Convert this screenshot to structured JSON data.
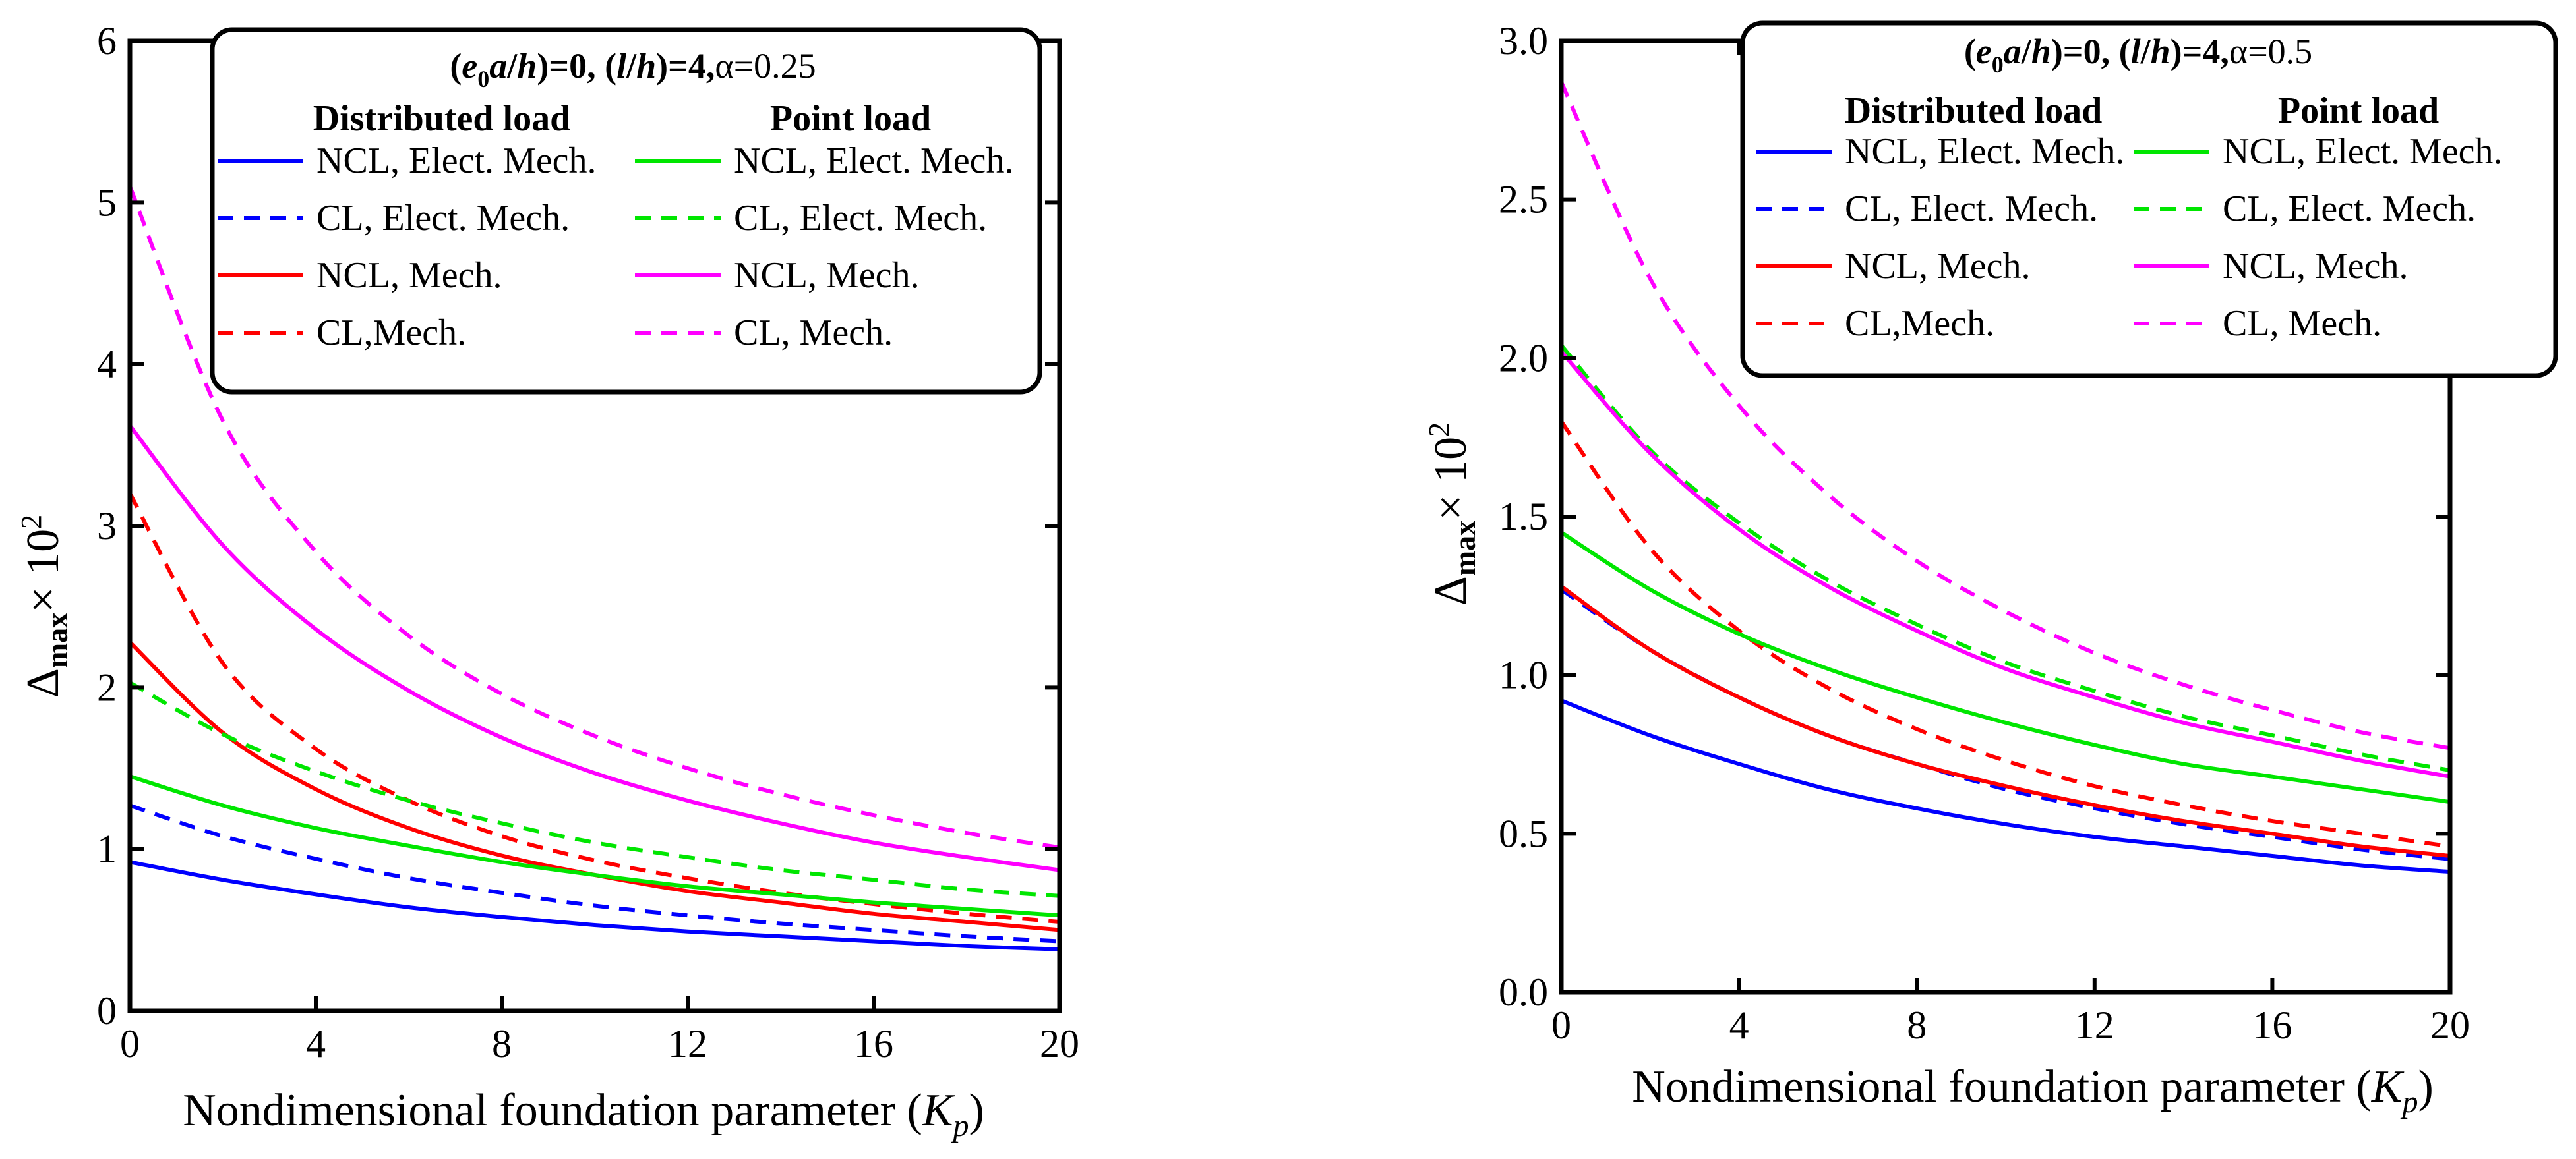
{
  "chart_data": [
    {
      "type": "line",
      "title": "(e0a/h)=0, (l/h)=4,α=0.25",
      "title_parts": {
        "e": "e",
        "sub0": "0",
        "a": "a",
        "h": "h",
        "mid": ")=0, (",
        "l": "l",
        "end": ")=4,",
        "alpha": "α=0.25"
      },
      "xlabel": "Nondimensional foundation parameter (Kp)",
      "xlabel_parts": {
        "text": "Nondimensional foundation parameter (",
        "K": "K",
        "sub": "p",
        "close": ")"
      },
      "ylabel": "Δmax × 10²",
      "ylabel_parts": {
        "delta": "Δ",
        "sub": "max",
        "times": "× 10",
        "sup": "2"
      },
      "xlim": [
        0,
        20
      ],
      "ylim": [
        0,
        6
      ],
      "xticks": [
        "0",
        "4",
        "8",
        "12",
        "16",
        "20"
      ],
      "yticks": [
        "0",
        "1",
        "2",
        "3",
        "4",
        "5",
        "6"
      ],
      "legend_headers": [
        "Distributed load",
        "Point load"
      ],
      "legend_position": "top-right",
      "x": [
        0,
        2,
        4,
        6,
        8,
        10,
        12,
        14,
        16,
        18,
        20
      ],
      "series": [
        {
          "name": "NCL, Elect. Mech.",
          "group": "Distributed load",
          "color": "#0000ff",
          "dash": "solid",
          "values": [
            0.92,
            0.81,
            0.72,
            0.64,
            0.58,
            0.53,
            0.49,
            0.46,
            0.43,
            0.4,
            0.38
          ]
        },
        {
          "name": "CL, Elect. Mech.",
          "group": "Distributed load",
          "color": "#0000ff",
          "dash": "dashed",
          "values": [
            1.27,
            1.08,
            0.94,
            0.82,
            0.73,
            0.65,
            0.59,
            0.54,
            0.5,
            0.46,
            0.43
          ]
        },
        {
          "name": "NCL, Mech.",
          "group": "Distributed load",
          "color": "#ff0000",
          "dash": "solid",
          "values": [
            2.28,
            1.72,
            1.37,
            1.13,
            0.96,
            0.84,
            0.74,
            0.67,
            0.6,
            0.55,
            0.5
          ]
        },
        {
          "name": "CL,Mech.",
          "group": "Distributed load",
          "color": "#ff0000",
          "dash": "dashed",
          "values": [
            3.2,
            2.15,
            1.62,
            1.3,
            1.08,
            0.93,
            0.82,
            0.73,
            0.66,
            0.6,
            0.55
          ]
        },
        {
          "name": "NCL, Elect. Mech.",
          "group": "Point load",
          "color": "#00e600",
          "dash": "solid",
          "values": [
            1.45,
            1.27,
            1.13,
            1.02,
            0.92,
            0.84,
            0.77,
            0.72,
            0.67,
            0.63,
            0.59
          ]
        },
        {
          "name": "CL, Elect. Mech.",
          "group": "Point load",
          "color": "#00e600",
          "dash": "dashed",
          "values": [
            2.03,
            1.71,
            1.48,
            1.3,
            1.16,
            1.04,
            0.95,
            0.87,
            0.81,
            0.75,
            0.71
          ]
        },
        {
          "name": "NCL, Mech.",
          "group": "Point load",
          "color": "#ff00ff",
          "dash": "solid",
          "values": [
            3.62,
            2.88,
            2.36,
            1.98,
            1.69,
            1.47,
            1.3,
            1.16,
            1.04,
            0.95,
            0.87
          ]
        },
        {
          "name": "CL, Mech.",
          "group": "Point load",
          "color": "#ff00ff",
          "dash": "dashed",
          "values": [
            5.1,
            3.65,
            2.84,
            2.32,
            1.96,
            1.7,
            1.5,
            1.34,
            1.21,
            1.1,
            1.01
          ]
        }
      ]
    },
    {
      "type": "line",
      "title": "(e0a/h)=0, (l/h)=4,α=0.5",
      "title_parts": {
        "e": "e",
        "sub0": "0",
        "a": "a",
        "h": "h",
        "mid": ")=0, (",
        "l": "l",
        "end": ")=4,",
        "alpha": "α=0.5"
      },
      "xlabel": "Nondimensional foundation parameter (Kp)",
      "xlabel_parts": {
        "text": "Nondimensional foundation parameter (",
        "K": "K",
        "sub": "p",
        "close": ")"
      },
      "ylabel": "Δmax × 10²",
      "ylabel_parts": {
        "delta": "Δ",
        "sub": "max",
        "times": "× 10",
        "sup": "2"
      },
      "xlim": [
        0,
        20
      ],
      "ylim": [
        0,
        3
      ],
      "xticks": [
        "0",
        "4",
        "8",
        "12",
        "16",
        "20"
      ],
      "yticks": [
        "0.0",
        "0.5",
        "1.0",
        "1.5",
        "2.0",
        "2.5",
        "3.0"
      ],
      "legend_headers": [
        "Distributed load",
        "Point load"
      ],
      "legend_position": "top-right",
      "x": [
        0,
        2,
        4,
        6,
        8,
        10,
        12,
        14,
        16,
        18,
        20
      ],
      "series": [
        {
          "name": "NCL, Elect. Mech.",
          "group": "Distributed load",
          "color": "#0000ff",
          "dash": "solid",
          "values": [
            0.92,
            0.81,
            0.72,
            0.64,
            0.58,
            0.53,
            0.49,
            0.46,
            0.43,
            0.4,
            0.38
          ]
        },
        {
          "name": "CL, Elect. Mech.",
          "group": "Distributed load",
          "color": "#0000ff",
          "dash": "dashed",
          "values": [
            1.27,
            1.08,
            0.93,
            0.81,
            0.72,
            0.64,
            0.58,
            0.53,
            0.49,
            0.45,
            0.42
          ]
        },
        {
          "name": "NCL, Mech.",
          "group": "Distributed load",
          "color": "#ff0000",
          "dash": "solid",
          "values": [
            1.28,
            1.08,
            0.93,
            0.81,
            0.72,
            0.65,
            0.59,
            0.54,
            0.5,
            0.46,
            0.43
          ]
        },
        {
          "name": "CL,Mech.",
          "group": "Distributed load",
          "color": "#ff0000",
          "dash": "dashed",
          "values": [
            1.8,
            1.4,
            1.14,
            0.96,
            0.83,
            0.73,
            0.65,
            0.59,
            0.54,
            0.5,
            0.46
          ]
        },
        {
          "name": "NCL, Elect. Mech.",
          "group": "Point load",
          "color": "#00e600",
          "dash": "solid",
          "values": [
            1.45,
            1.27,
            1.13,
            1.02,
            0.93,
            0.85,
            0.78,
            0.72,
            0.68,
            0.64,
            0.6
          ]
        },
        {
          "name": "CL, Elect. Mech.",
          "group": "Point load",
          "color": "#00e600",
          "dash": "dashed",
          "values": [
            2.04,
            1.71,
            1.48,
            1.3,
            1.16,
            1.04,
            0.95,
            0.87,
            0.81,
            0.75,
            0.7
          ]
        },
        {
          "name": "NCL, Mech.",
          "group": "Point load",
          "color": "#ff00ff",
          "dash": "solid",
          "values": [
            2.02,
            1.7,
            1.46,
            1.28,
            1.14,
            1.02,
            0.93,
            0.85,
            0.79,
            0.73,
            0.68
          ]
        },
        {
          "name": "CL, Mech.",
          "group": "Point load",
          "color": "#ff00ff",
          "dash": "dashed",
          "values": [
            2.87,
            2.25,
            1.85,
            1.57,
            1.36,
            1.2,
            1.07,
            0.97,
            0.89,
            0.82,
            0.77
          ]
        }
      ]
    }
  ]
}
